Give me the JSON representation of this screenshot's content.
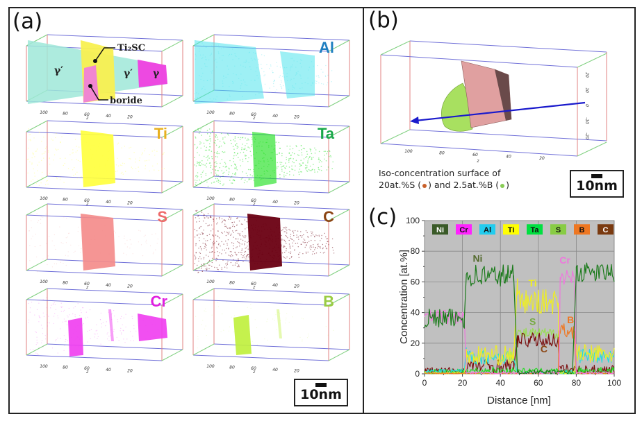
{
  "panels": {
    "a": {
      "label": "(a)",
      "maps": [
        {
          "element": "",
          "color": "#5ad8c8",
          "phases": [
            "γ′",
            "γ′",
            "γ"
          ],
          "callouts": [
            "Ti₂SC",
            "boride"
          ]
        },
        {
          "element": "Al",
          "color": "#1f7fc0",
          "cloud": "#4fe3ec"
        },
        {
          "element": "Ti",
          "color": "#e8b020",
          "cloud": "#ffff3a"
        },
        {
          "element": "Ta",
          "color": "#1aa84a",
          "cloud": "#22e022"
        },
        {
          "element": "S",
          "color": "#ee6a6a",
          "cloud": "#f48a88"
        },
        {
          "element": "C",
          "color": "#8b4513",
          "cloud": "#6a0012"
        },
        {
          "element": "Cr",
          "color": "#e020e0",
          "cloud": "#f03cf0"
        },
        {
          "element": "B",
          "color": "#9acc44",
          "cloud": "#bff03a"
        }
      ],
      "z_ticks": [
        "100",
        "80",
        "60",
        "40",
        "20"
      ],
      "z_axis_label": "z",
      "scale_bar": "10nm"
    },
    "b": {
      "label": "(b)",
      "z_ticks": [
        "100",
        "80",
        "60",
        "40",
        "20"
      ],
      "x_ticks": [
        "20",
        "10",
        "0",
        "-10",
        "-20"
      ],
      "z_axis_label": "z",
      "x_axis_label": "x",
      "caption_line1": "Iso-concentration surface of",
      "caption_line2_a": "20at.%S (",
      "caption_line2_b": ") and  2.5at.%B (",
      "caption_line2_c": ")",
      "s_color": "#c8602a",
      "b_color": "#88cc55",
      "scale_bar": "10nm"
    },
    "c": {
      "label": "(c)"
    }
  },
  "chart_data": {
    "type": "line",
    "title": "",
    "xlabel": "Distance [nm]",
    "ylabel": "Concentration [at.%]",
    "xlim": [
      0,
      100
    ],
    "ylim": [
      0,
      100
    ],
    "xticks": [
      0,
      20,
      40,
      60,
      80,
      100
    ],
    "yticks": [
      0,
      20,
      40,
      60,
      80,
      100
    ],
    "grid": true,
    "background": "#c0c0c0",
    "legend": {
      "placement": "top",
      "entries": [
        "Ni",
        "Cr",
        "Al",
        "Ti",
        "Ta",
        "S",
        "B",
        "C"
      ]
    },
    "annotations": [
      {
        "text": "Ni",
        "x": 28,
        "y": 73,
        "series": "Ni"
      },
      {
        "text": "Ti",
        "x": 57,
        "y": 57,
        "series": "Ti"
      },
      {
        "text": "S",
        "x": 57,
        "y": 32,
        "series": "S"
      },
      {
        "text": "C",
        "x": 63,
        "y": 14,
        "series": "C"
      },
      {
        "text": "B",
        "x": 77,
        "y": 33,
        "series": "B"
      },
      {
        "text": "Cr",
        "x": 74,
        "y": 72,
        "series": "Cr"
      }
    ],
    "series": [
      {
        "name": "Ni",
        "color": "#1a7a1a",
        "legend_color": "#3a5a28",
        "segments": [
          [
            0,
            21,
            36,
            4
          ],
          [
            22,
            47,
            64,
            5
          ],
          [
            49,
            70,
            1,
            1
          ],
          [
            71,
            78,
            1,
            1
          ],
          [
            80,
            100,
            66,
            4
          ]
        ],
        "steps": [
          [
            21,
            22,
            36,
            64
          ],
          [
            47,
            49,
            64,
            1
          ],
          [
            78,
            80,
            1,
            66
          ]
        ]
      },
      {
        "name": "Cr",
        "color": "#ee77dd",
        "legend_color": "#ff22ff",
        "segments": [
          [
            0,
            21,
            37,
            3
          ],
          [
            22,
            71,
            0.5,
            0.5
          ],
          [
            71.5,
            79,
            63,
            3
          ],
          [
            80,
            100,
            0.5,
            0.5
          ]
        ],
        "steps": [
          [
            21,
            22,
            37,
            0.5
          ],
          [
            71,
            71.5,
            0.5,
            63
          ],
          [
            79,
            80,
            63,
            0.5
          ]
        ]
      },
      {
        "name": "Al",
        "color": "#22dddd",
        "legend_color": "#22ccee",
        "segments": [
          [
            0,
            21,
            1.5,
            1
          ],
          [
            22,
            47,
            11,
            3
          ],
          [
            49,
            71,
            0.5,
            0.5
          ],
          [
            71,
            79,
            1,
            1
          ],
          [
            80,
            100,
            12,
            3
          ]
        ],
        "steps": [
          [
            21,
            22,
            1.5,
            17
          ],
          [
            47,
            49,
            10,
            0.5
          ],
          [
            79,
            80,
            1,
            12
          ]
        ]
      },
      {
        "name": "Ti",
        "color": "#eeee22",
        "legend_color": "#ffff00",
        "segments": [
          [
            0,
            21,
            0.5,
            0.5
          ],
          [
            22,
            47,
            12,
            4
          ],
          [
            49,
            70.5,
            47,
            5
          ],
          [
            71,
            79,
            1,
            1
          ],
          [
            80,
            100,
            13,
            4
          ]
        ],
        "steps": [
          [
            21,
            22,
            0.5,
            8
          ],
          [
            47,
            49,
            10,
            62
          ],
          [
            70.5,
            71,
            46,
            1
          ],
          [
            79,
            80,
            1,
            14
          ]
        ]
      },
      {
        "name": "Ta",
        "color": "#22dd22",
        "legend_color": "#00e040",
        "segments": [
          [
            0,
            22,
            1.5,
            1
          ],
          [
            22,
            47,
            2,
            1.5
          ],
          [
            49,
            71,
            2,
            1
          ],
          [
            71,
            79,
            1,
            1
          ],
          [
            80,
            100,
            2,
            1.5
          ]
        ],
        "steps": []
      },
      {
        "name": "S",
        "color": "#99dd55",
        "legend_color": "#88cc44",
        "segments": [
          [
            0,
            48,
            0.3,
            0.3
          ],
          [
            49,
            70.5,
            26,
            2.5
          ],
          [
            71,
            100,
            0.3,
            0.3
          ]
        ],
        "steps": [
          [
            48,
            49,
            0.3,
            26
          ],
          [
            70.5,
            71,
            26,
            0.3
          ]
        ]
      },
      {
        "name": "B",
        "color": "#ee7722",
        "legend_color": "#ee7722",
        "segments": [
          [
            0,
            70.5,
            0.3,
            0.3
          ],
          [
            71,
            79,
            28,
            3
          ],
          [
            80,
            100,
            0.3,
            0.3
          ]
        ],
        "steps": [
          [
            70.5,
            71,
            0.3,
            28
          ],
          [
            79,
            80,
            28,
            0.3
          ]
        ]
      },
      {
        "name": "C",
        "color": "#7a0e0e",
        "legend_color": "#7a3a10",
        "segments": [
          [
            0,
            21,
            2,
            1.5
          ],
          [
            22,
            47,
            5,
            3
          ],
          [
            49,
            70.5,
            22,
            3
          ],
          [
            71,
            79,
            3,
            2
          ],
          [
            80,
            100,
            2.5,
            2
          ]
        ],
        "steps": [
          [
            47,
            49,
            3,
            25
          ],
          [
            70.5,
            71,
            22,
            2
          ]
        ]
      }
    ]
  }
}
